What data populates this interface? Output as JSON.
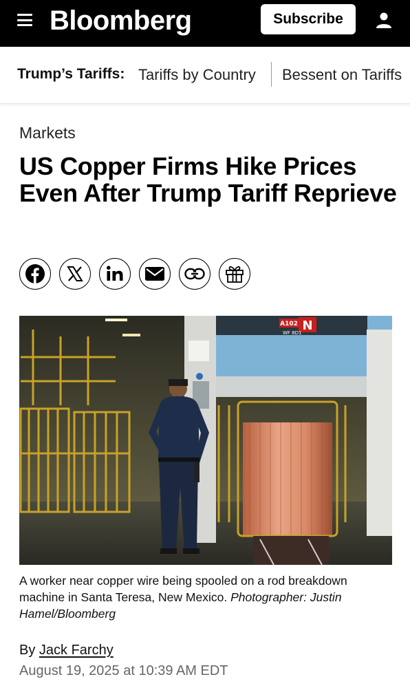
{
  "header": {
    "logo": "Bloomberg",
    "subscribe_label": "Subscribe",
    "icons": [
      "menu-icon",
      "user-icon"
    ]
  },
  "tariff_nav": {
    "lead": "Trump’s Tariffs:",
    "links": [
      "Tariffs by Country",
      "Bessent on Tariffs"
    ]
  },
  "article": {
    "section": "Markets",
    "headline": "US Copper Firms Hike Prices Even After Trump Tariff Reprieve",
    "share_icons": [
      "facebook-icon",
      "x-icon",
      "linkedin-icon",
      "email-icon",
      "link-icon",
      "gift-icon"
    ],
    "caption": "A worker near copper wire being spooled on a rod breakdown machine in Santa Teresa, New Mexico.",
    "photo_credit": "Photographer: Justin Hamel/Bloomberg",
    "image_signage": {
      "machine_code": "A102",
      "machine_model": "WF 8D1"
    },
    "byline_prefix": "By",
    "author": "Jack Farchy",
    "timestamp": "August 19, 2025 at 10:39 AM EDT"
  },
  "colors": {
    "topbar": "#000000",
    "copper": "#d98a68",
    "cage_yellow": "#c9a227",
    "machine_blue": "#7fb3d6"
  }
}
